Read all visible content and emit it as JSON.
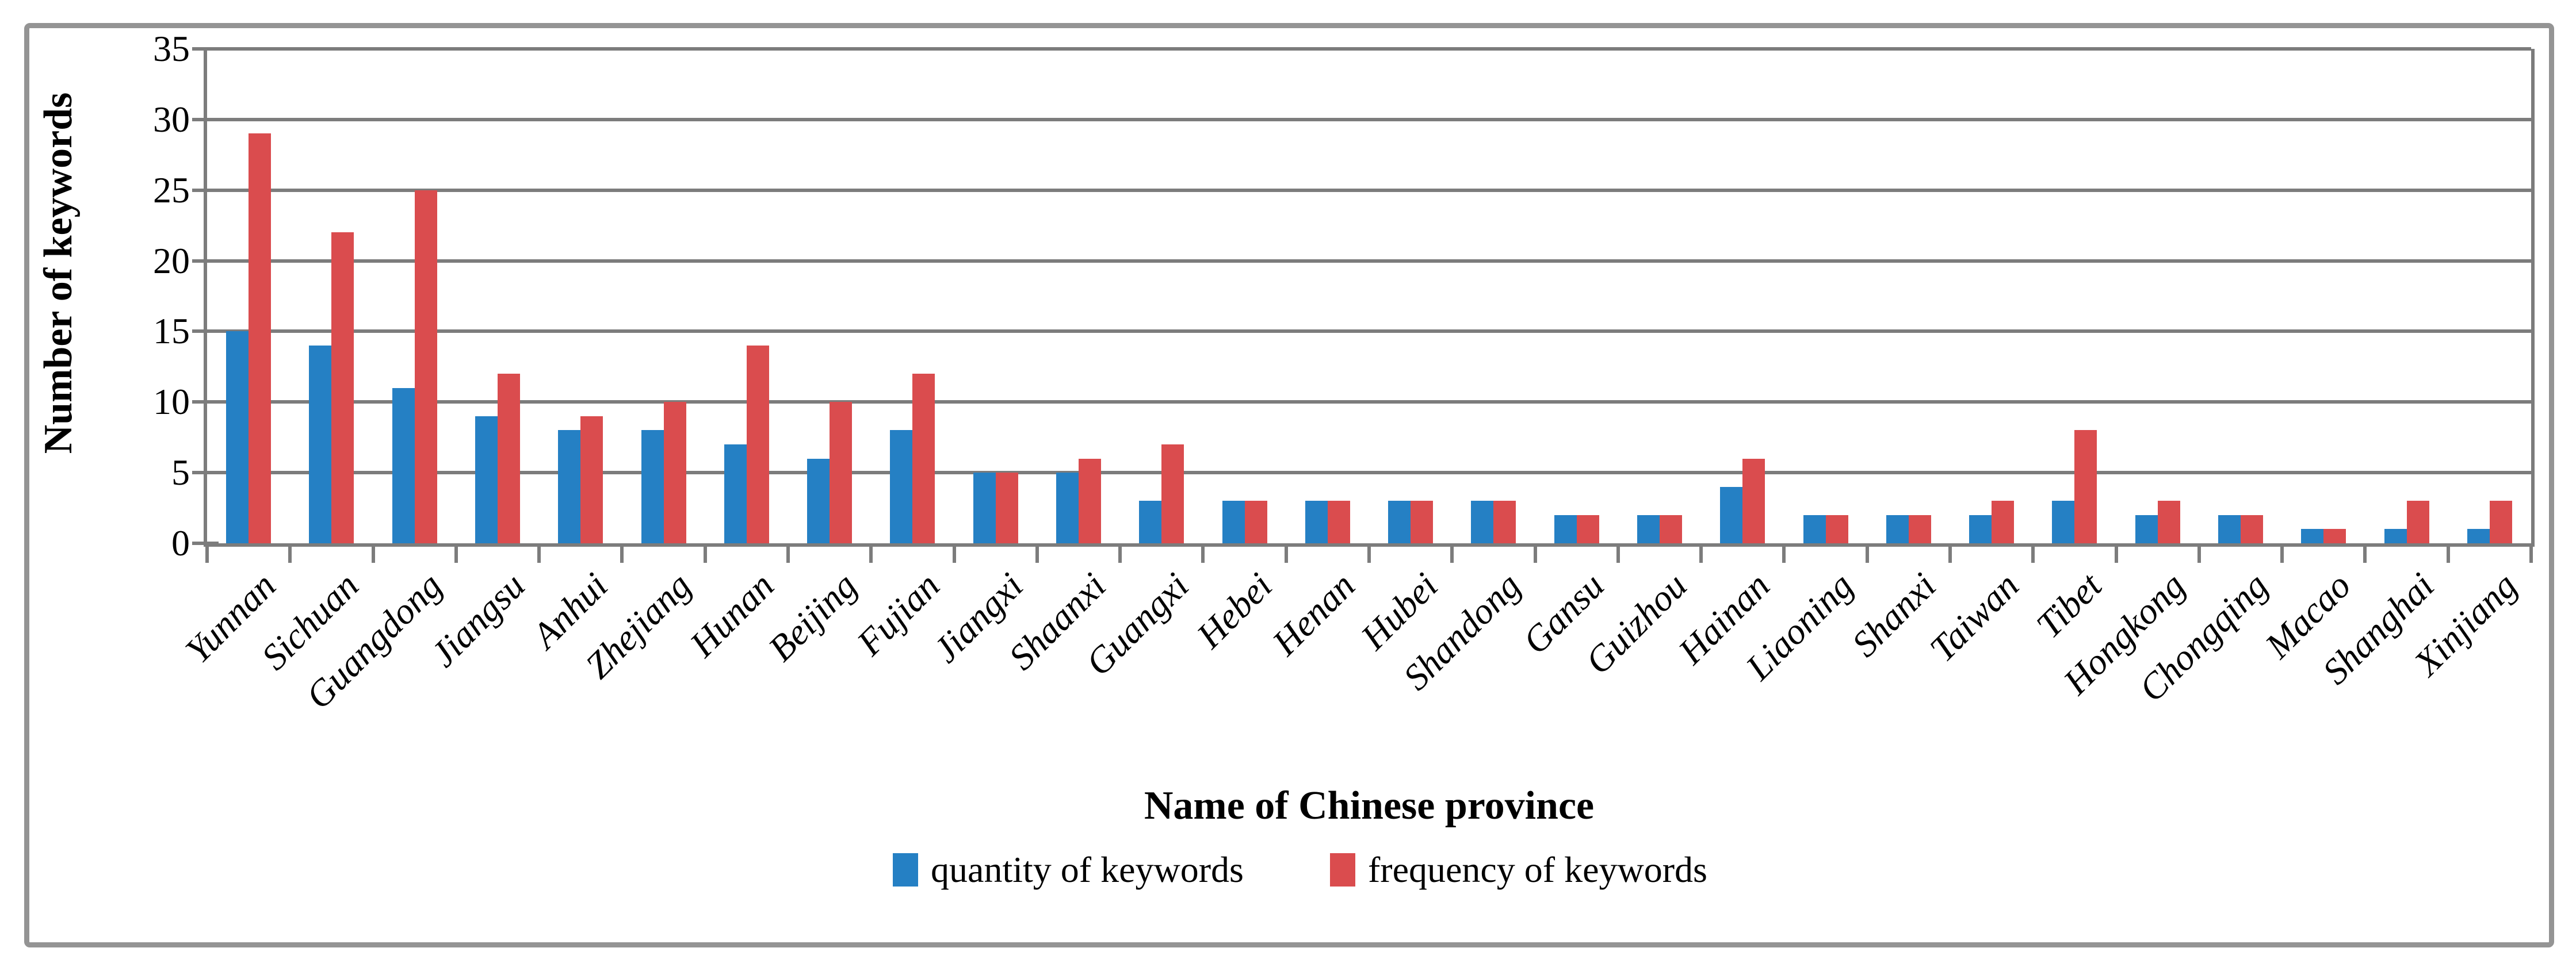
{
  "chart_data": {
    "type": "bar",
    "title": "",
    "xlabel": "Name of Chinese province",
    "ylabel": "Number of keywords",
    "ylim": [
      0,
      35
    ],
    "yticks": [
      0,
      5,
      10,
      15,
      20,
      25,
      30,
      35
    ],
    "grid": true,
    "legend_position": "bottom",
    "categories": [
      "Yunnan",
      "Sichuan",
      "Guangdong",
      "Jiangsu",
      "Anhui",
      "Zhejiang",
      "Hunan",
      "Beijing",
      "Fujian",
      "Jiangxi",
      "Shaanxi",
      "Guangxi",
      "Hebei",
      "Henan",
      "Hubei",
      "Shandong",
      "Gansu",
      "Guizhou",
      "Hainan",
      "Liaoning",
      "Shanxi",
      "Taiwan",
      "Tibet",
      "Hongkong",
      "Chongqing",
      "Macao",
      "Shanghai",
      "Xinjiang"
    ],
    "series": [
      {
        "name": "quantity of keywords",
        "color": "#2580C4",
        "values": [
          15,
          14,
          11,
          9,
          8,
          8,
          7,
          6,
          8,
          5,
          5,
          3,
          3,
          3,
          3,
          3,
          2,
          2,
          4,
          2,
          2,
          2,
          3,
          2,
          2,
          1,
          1,
          1
        ]
      },
      {
        "name": "frequency of keywords",
        "color": "#DA4C4E",
        "values": [
          29,
          22,
          25,
          12,
          9,
          10,
          14,
          10,
          12,
          5,
          6,
          7,
          3,
          3,
          3,
          3,
          2,
          2,
          6,
          2,
          2,
          3,
          8,
          3,
          2,
          1,
          3,
          3
        ]
      }
    ],
    "colors": {
      "gridline": "#7c7c7c",
      "axis": "#7c7c7c",
      "frame_border": "#949494",
      "text": "#000000"
    }
  }
}
